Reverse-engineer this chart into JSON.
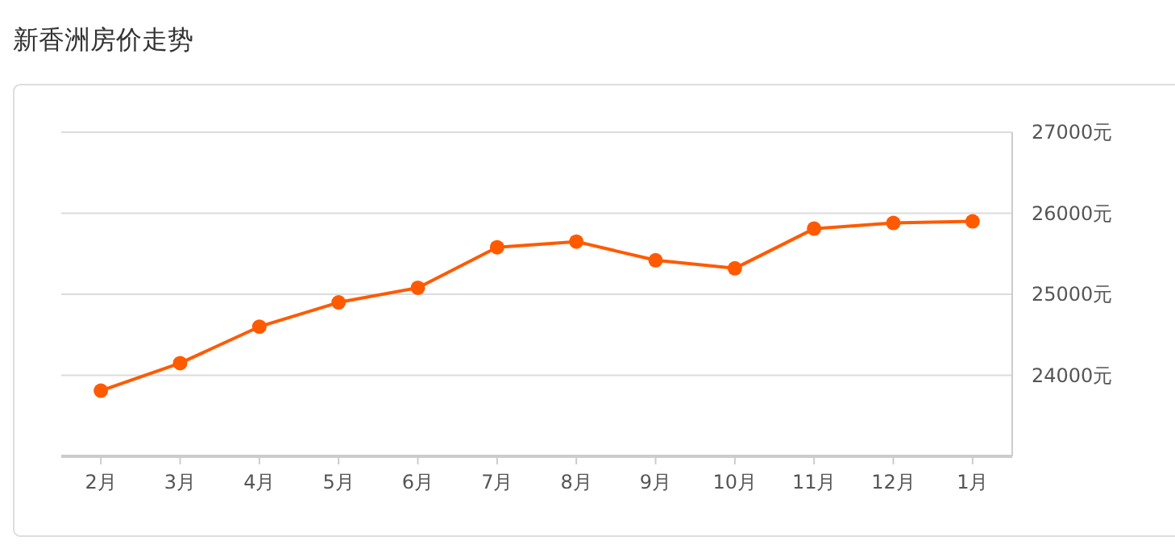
{
  "chart_data": {
    "type": "line",
    "title": "新香洲房价走势",
    "categories": [
      "2月",
      "3月",
      "4月",
      "5月",
      "6月",
      "7月",
      "8月",
      "9月",
      "10月",
      "11月",
      "12月",
      "1月"
    ],
    "series": [
      {
        "color": "#ff5a00",
        "values": [
          23810,
          24150,
          24600,
          24900,
          25080,
          25580,
          25650,
          25420,
          25320,
          25810,
          25880,
          25900
        ]
      }
    ],
    "ylim": [
      23000,
      27000
    ],
    "yticks": [
      {
        "value": 23000,
        "label": null
      },
      {
        "value": 24000,
        "label": "24000元"
      },
      {
        "value": 25000,
        "label": "25000元"
      },
      {
        "value": 26000,
        "label": "26000元"
      },
      {
        "value": 27000,
        "label": "27000元"
      }
    ],
    "grid": "y",
    "marker": "circle",
    "line_style": "solid"
  }
}
